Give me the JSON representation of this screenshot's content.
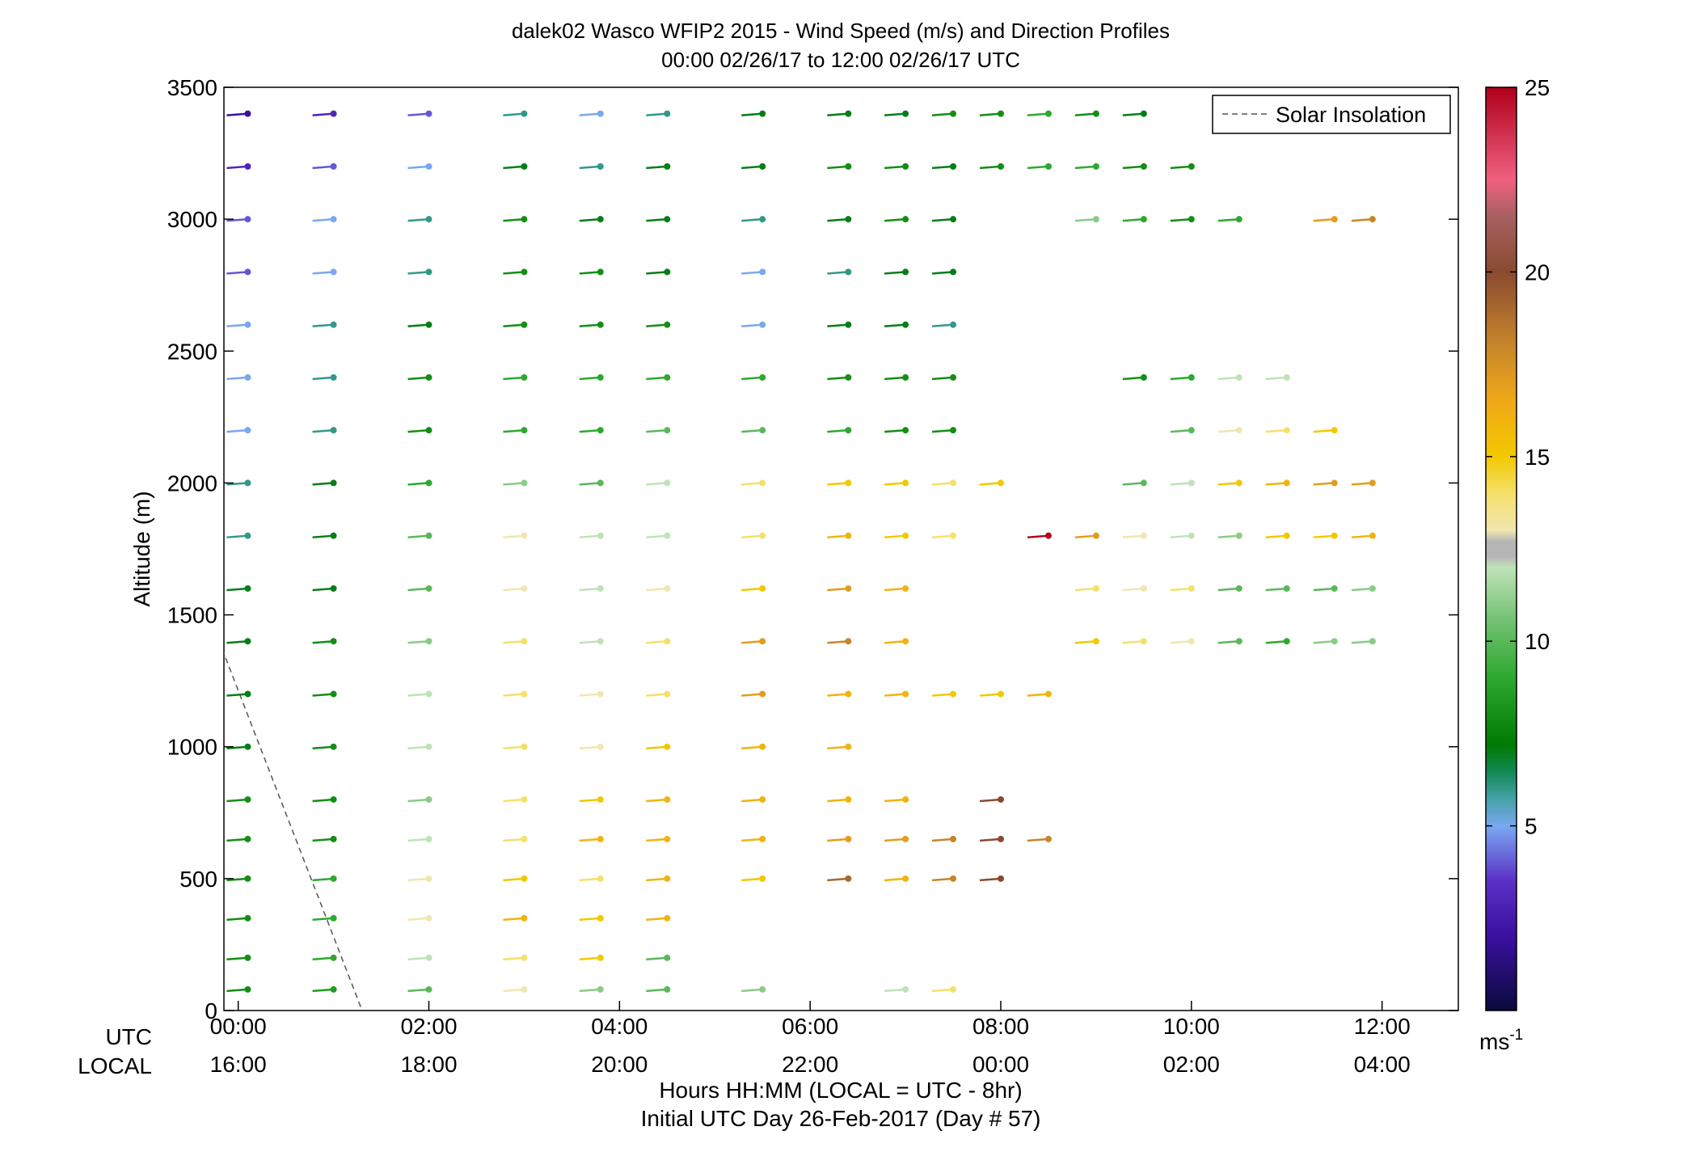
{
  "chart_data": {
    "type": "scatter",
    "title": "dalek02 Wasco WFIP2 2015 - Wind Speed (m/s) and Direction Profiles",
    "subtitle": "00:00 02/26/17 to 12:00 02/26/17  UTC",
    "ylabel": "Altitude (m)",
    "xlabel_line1": "Hours HH:MM  (LOCAL = UTC - 8hr)",
    "xlabel_line2": "Initial UTC Day 26-Feb-2017 (Day # 57)",
    "x_row_labels": [
      "UTC",
      "LOCAL"
    ],
    "ylim": [
      0,
      3500
    ],
    "y_ticks": [
      0,
      500,
      1000,
      1500,
      2000,
      2500,
      3000,
      3500
    ],
    "y_tick_labels": [
      "0",
      "500",
      "1000",
      "1500",
      "2000",
      "2500",
      "3000",
      "3500"
    ],
    "xlim_hours": [
      -0.15,
      12.8
    ],
    "x_ticks_hours": [
      0,
      2,
      4,
      6,
      8,
      10,
      12
    ],
    "x_tick_labels_utc": [
      "00:00",
      "02:00",
      "04:00",
      "06:00",
      "08:00",
      "10:00",
      "12:00"
    ],
    "x_tick_labels_local": [
      "16:00",
      "18:00",
      "20:00",
      "22:00",
      "00:00",
      "02:00",
      "04:00"
    ],
    "legend": {
      "label": "Solar Insolation",
      "placement": "top-right"
    },
    "solar_insolation_line": {
      "x": [
        -0.5,
        1.3
      ],
      "y": [
        1680,
        0
      ]
    },
    "colorbar": {
      "unit_label": "ms",
      "unit_exponent": "-1",
      "range": [
        0,
        25
      ],
      "ticks": [
        5,
        10,
        15,
        20,
        25
      ],
      "tick_labels": [
        "5",
        "10",
        "15",
        "20",
        "25"
      ],
      "stops": [
        {
          "v": 0,
          "c": "#0a0a3c"
        },
        {
          "v": 2,
          "c": "#3a10a0"
        },
        {
          "v": 3.5,
          "c": "#5a30c8"
        },
        {
          "v": 5,
          "c": "#7aa8f0"
        },
        {
          "v": 5.8,
          "c": "#40a0a0"
        },
        {
          "v": 6.5,
          "c": "#108850"
        },
        {
          "v": 7.2,
          "c": "#007a00"
        },
        {
          "v": 9,
          "c": "#2ea82e"
        },
        {
          "v": 10.5,
          "c": "#6fc06f"
        },
        {
          "v": 12,
          "c": "#bfe2b8"
        },
        {
          "v": 12.3,
          "c": "#b5b5b5"
        },
        {
          "v": 12.7,
          "c": "#b5b5b5"
        },
        {
          "v": 13,
          "c": "#f0e6b0"
        },
        {
          "v": 14,
          "c": "#f5e06a"
        },
        {
          "v": 15,
          "c": "#f2c800"
        },
        {
          "v": 16.5,
          "c": "#f0a818"
        },
        {
          "v": 18,
          "c": "#c8862a"
        },
        {
          "v": 20,
          "c": "#8a4a30"
        },
        {
          "v": 21.5,
          "c": "#a86060"
        },
        {
          "v": 22.5,
          "c": "#f06080"
        },
        {
          "v": 25,
          "c": "#b0001a"
        }
      ]
    },
    "wind_profiles": {
      "hours": [
        0.1,
        1.0,
        2.0,
        3.0,
        3.8,
        4.5,
        5.5,
        6.4,
        7.0,
        7.5,
        8.0,
        8.5,
        9.0,
        9.5,
        10.0,
        10.5,
        11.0,
        11.5,
        11.9
      ],
      "altitudes_m": [
        80,
        200,
        350,
        500,
        650,
        800,
        1000,
        1200,
        1400,
        1600,
        1800,
        2000,
        2200,
        2400,
        2600,
        2800,
        3000,
        3200,
        3400
      ],
      "speed_ms": [
        [
          8,
          8.5,
          10,
          13,
          11,
          10,
          11,
          null,
          12,
          14,
          null,
          null,
          null,
          null,
          null,
          null,
          null,
          null,
          null
        ],
        [
          8,
          9,
          12,
          14,
          15,
          10,
          null,
          null,
          null,
          null,
          null,
          null,
          null,
          null,
          null,
          null,
          null,
          null,
          null
        ],
        [
          8,
          9,
          13,
          16,
          15,
          16,
          null,
          null,
          null,
          null,
          null,
          null,
          null,
          null,
          null,
          null,
          null,
          null,
          null
        ],
        [
          8,
          9,
          13,
          15,
          14,
          16,
          15,
          19,
          16,
          18,
          20,
          null,
          null,
          null,
          null,
          null,
          null,
          null,
          null
        ],
        [
          8,
          8,
          12,
          14,
          16,
          16,
          16,
          17,
          17,
          18,
          20,
          18,
          null,
          null,
          null,
          null,
          null,
          null,
          null
        ],
        [
          8,
          8,
          11,
          14,
          15,
          16,
          16,
          16,
          16,
          null,
          20,
          null,
          null,
          null,
          null,
          null,
          null,
          null,
          null
        ],
        [
          7,
          8,
          12,
          14,
          13,
          15,
          16,
          16,
          null,
          null,
          null,
          null,
          null,
          null,
          null,
          null,
          null,
          null,
          null
        ],
        [
          7,
          8,
          12,
          14,
          13,
          14,
          17,
          16,
          16,
          15,
          15,
          16,
          null,
          null,
          null,
          null,
          null,
          null,
          null
        ],
        [
          7,
          8,
          11,
          14,
          12,
          14,
          17,
          18,
          16,
          null,
          null,
          null,
          15,
          14,
          13,
          10,
          9,
          11,
          11
        ],
        [
          7,
          7,
          10,
          13,
          12,
          13,
          15,
          17,
          16,
          null,
          null,
          null,
          14,
          13,
          14,
          10,
          10,
          10,
          11
        ],
        [
          6,
          7,
          10,
          13,
          12,
          12,
          14,
          16,
          15,
          14,
          null,
          25,
          17,
          13,
          12,
          11,
          15,
          15,
          16
        ],
        [
          6,
          7,
          9,
          11,
          10,
          12,
          14,
          15,
          15,
          14,
          15,
          null,
          null,
          10,
          12,
          15,
          16,
          17,
          17
        ],
        [
          5,
          6,
          8,
          9,
          9,
          10,
          10,
          9,
          8,
          8,
          null,
          null,
          null,
          null,
          10,
          13,
          14,
          15,
          null
        ],
        [
          5,
          6,
          8,
          9,
          9,
          9,
          9,
          8,
          8,
          8,
          null,
          null,
          null,
          8,
          9,
          12,
          12,
          null,
          null
        ],
        [
          5,
          6,
          7,
          8,
          8,
          8,
          5,
          7,
          7,
          6,
          null,
          null,
          null,
          null,
          null,
          null,
          null,
          null,
          null
        ],
        [
          4,
          5,
          6,
          8,
          8,
          7,
          5,
          6,
          7,
          7,
          null,
          null,
          null,
          null,
          null,
          null,
          null,
          null,
          null
        ],
        [
          4,
          5,
          6,
          8,
          7,
          7,
          6,
          7,
          8,
          7,
          null,
          null,
          11,
          9,
          8,
          9,
          null,
          17,
          18
        ],
        [
          3,
          4,
          5,
          7,
          6,
          7,
          7,
          8,
          8,
          7,
          8,
          9,
          9,
          8,
          8,
          null,
          null,
          null,
          null
        ],
        [
          2,
          3,
          4,
          6,
          5,
          6,
          7,
          7,
          7,
          8,
          8,
          9,
          8,
          7,
          null,
          null,
          null,
          null,
          null
        ]
      ]
    }
  }
}
